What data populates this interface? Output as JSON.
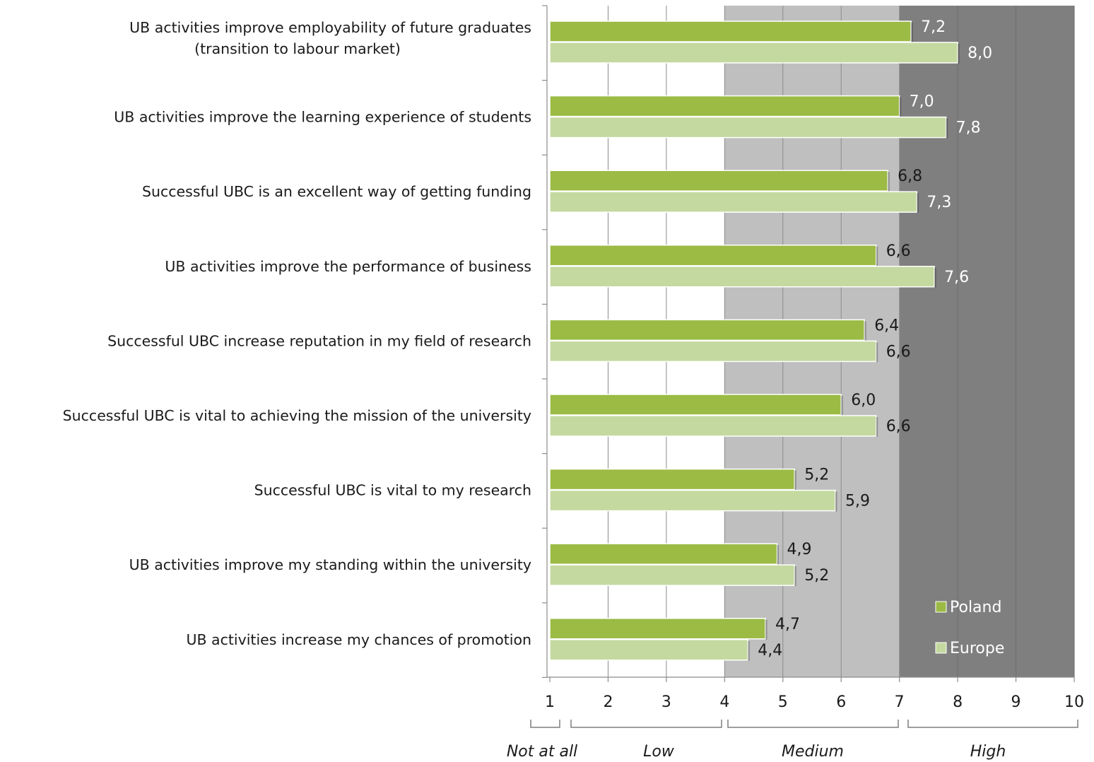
{
  "chart_data": {
    "type": "bar",
    "orientation": "horizontal",
    "categories": [
      [
        "UB activities improve employability of future graduates",
        "(transition to labour market)"
      ],
      [
        "UB activities improve the learning experience of students"
      ],
      [
        "Successful UBC is an excellent way of getting funding"
      ],
      [
        "UB activities improve the performance of business"
      ],
      [
        "Successful UBC increase reputation in my field of research"
      ],
      [
        "Successful UBC is vital to achieving the mission of the university"
      ],
      [
        "Successful UBC is vital to my research"
      ],
      [
        "UB activities improve my standing within the university"
      ],
      [
        "UB activities increase my chances of promotion"
      ]
    ],
    "series": [
      {
        "name": "Poland",
        "color": "#9bbb45",
        "values": [
          7.2,
          7.0,
          6.8,
          6.6,
          6.4,
          6.0,
          5.2,
          4.9,
          4.7
        ],
        "labels": [
          "7,2",
          "7,0",
          "6,8",
          "6,6",
          "6,4",
          "6,0",
          "5,2",
          "4,9",
          "4,7"
        ]
      },
      {
        "name": "Europe",
        "color": "#c4d99f",
        "values": [
          8.0,
          7.8,
          7.3,
          7.6,
          6.6,
          6.6,
          5.9,
          5.2,
          4.4
        ],
        "labels": [
          "8,0",
          "7,8",
          "7,3",
          "7,6",
          "6,6",
          "6,6",
          "5,9",
          "5,2",
          "4,4"
        ]
      }
    ],
    "xlim": [
      1,
      10
    ],
    "ticks": [
      "1",
      "2",
      "3",
      "4",
      "5",
      "6",
      "7",
      "8",
      "9",
      "10"
    ],
    "bands": [
      {
        "label": "Not at all",
        "from": 1,
        "to": 1,
        "shade": "none"
      },
      {
        "label": "Low",
        "from": 1,
        "to": 4,
        "shade": "none"
      },
      {
        "label": "Medium",
        "from": 4,
        "to": 7,
        "shade": "#bfbfbf"
      },
      {
        "label": "High",
        "from": 7,
        "to": 10,
        "shade": "#7f7f7f"
      }
    ],
    "grid": true,
    "legend": {
      "position": "bottom-right",
      "entries": [
        "Poland",
        "Europe"
      ]
    }
  }
}
